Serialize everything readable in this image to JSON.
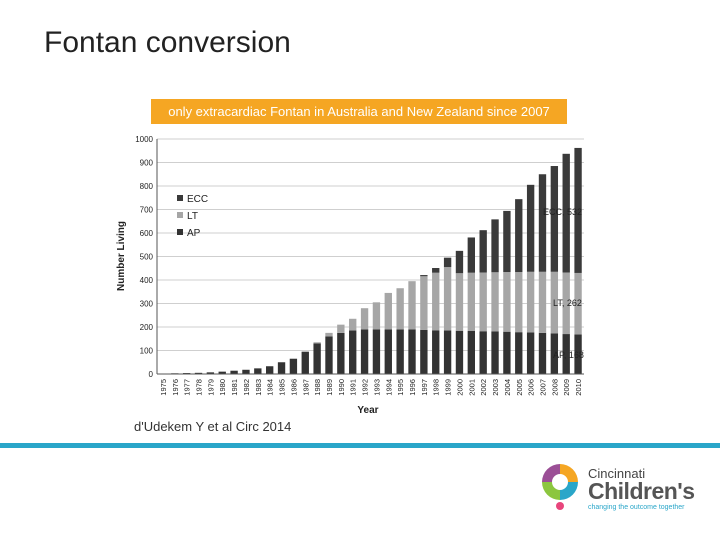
{
  "slide": {
    "title": "Fontan conversion",
    "banner": "only extracardiac Fontan in Australia and New Zealand since 2007",
    "citation": "d'Udekem Y et al Circ 2014"
  },
  "logo": {
    "line1": "Cincinnati",
    "line2": "Children's",
    "tagline": "changing the outcome together"
  },
  "colors": {
    "banner": "#f5a623",
    "rule": "#2aa6c9",
    "ecc": "#3a3a3a",
    "lt": "#a6a6a6",
    "ap": "#333333"
  },
  "chart_data": {
    "type": "bar",
    "stacked": true,
    "xlabel": "Year",
    "ylabel": "Number Living",
    "ylim": [
      0,
      1000
    ],
    "yticks": [
      0,
      100,
      200,
      300,
      400,
      500,
      600,
      700,
      800,
      900,
      1000
    ],
    "grid": true,
    "legend": "top-left",
    "categories": [
      "1975",
      "1976",
      "1977",
      "1978",
      "1979",
      "1980",
      "1981",
      "1982",
      "1983",
      "1984",
      "1985",
      "1986",
      "1987",
      "1988",
      "1989",
      "1990",
      "1991",
      "1992",
      "1993",
      "1994",
      "1995",
      "1996",
      "1997",
      "1998",
      "1999",
      "2000",
      "2001",
      "2002",
      "2003",
      "2004",
      "2005",
      "2006",
      "2007",
      "2008",
      "2009",
      "2010"
    ],
    "series": [
      {
        "name": "AP",
        "values": [
          2,
          3,
          4,
          5,
          7,
          10,
          14,
          18,
          24,
          33,
          50,
          65,
          95,
          130,
          160,
          175,
          185,
          190,
          190,
          190,
          190,
          190,
          188,
          186,
          185,
          184,
          183,
          182,
          181,
          180,
          178,
          177,
          175,
          173,
          170,
          168
        ]
      },
      {
        "name": "LT",
        "values": [
          0,
          0,
          0,
          0,
          0,
          0,
          0,
          0,
          0,
          0,
          0,
          0,
          0,
          5,
          15,
          35,
          50,
          90,
          115,
          155,
          175,
          205,
          228,
          245,
          270,
          245,
          248,
          250,
          252,
          254,
          256,
          258,
          260,
          262,
          262,
          262
        ]
      },
      {
        "name": "ECC",
        "values": [
          0,
          0,
          0,
          0,
          0,
          0,
          0,
          0,
          0,
          0,
          0,
          0,
          0,
          0,
          0,
          0,
          0,
          0,
          0,
          0,
          0,
          0,
          5,
          20,
          40,
          95,
          150,
          180,
          225,
          260,
          310,
          370,
          415,
          450,
          505,
          532
        ]
      }
    ],
    "annotations": [
      "ECC, 532",
      "LT, 262",
      "AP, 168"
    ]
  }
}
